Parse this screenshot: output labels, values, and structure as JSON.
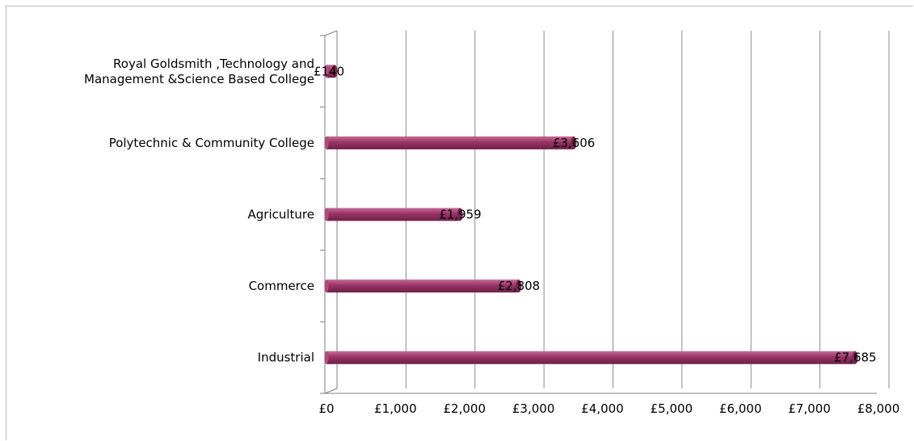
{
  "chart_data": {
    "type": "bar",
    "orientation": "horizontal",
    "categories": [
      [
        "Royal Goldsmith ,Technology and",
        "Management  &Science Based College"
      ],
      [
        "Polytechnic & Community College"
      ],
      [
        "Agriculture"
      ],
      [
        "Commerce"
      ],
      [
        "Industrial"
      ]
    ],
    "values": [
      140,
      3606,
      1959,
      2808,
      7685
    ],
    "data_labels": [
      "£140",
      "£3,606",
      "£1,959",
      "£2,808",
      "£7,685"
    ],
    "xlim": [
      0,
      8000
    ],
    "xticks": [
      0,
      1000,
      2000,
      3000,
      4000,
      5000,
      6000,
      7000,
      8000
    ],
    "xtick_labels": [
      "£0",
      "£1,000",
      "£2,000",
      "£3,000",
      "£4,000",
      "£5,000",
      "£6,000",
      "£7,000",
      "£8,000"
    ],
    "grid": "vertical",
    "bar_color": "#993366",
    "title": "",
    "xlabel": "",
    "ylabel": ""
  }
}
